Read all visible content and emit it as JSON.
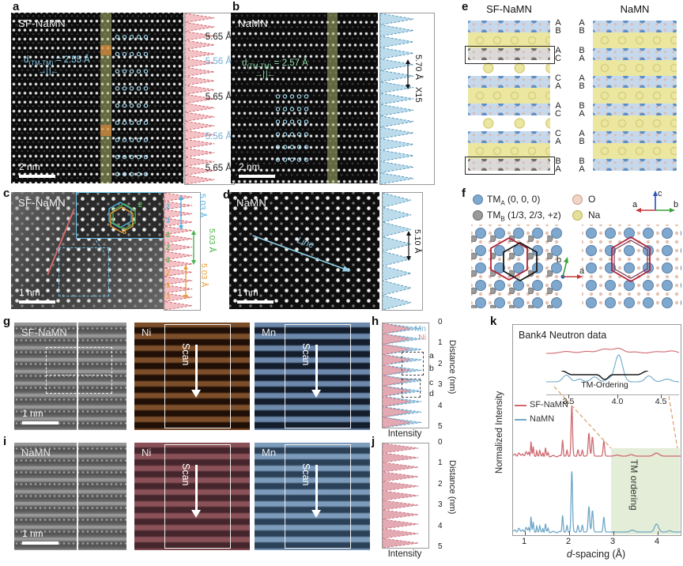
{
  "panels": {
    "a": {
      "label": "a",
      "sample": "SF-NaMN",
      "scalebar": "2 nm",
      "d_main": "d",
      "d_sub": "(TM-TM)",
      "d_rest": " = 2.55 Å",
      "arrows": "→| |←",
      "profile_labels": [
        {
          "t": "5.65 Å",
          "c": "#1a1a1a"
        },
        {
          "t": "5.56 Å",
          "c": "#74aed4"
        },
        {
          "t": "5.65 Å",
          "c": "#1a1a1a"
        },
        {
          "t": "5.56 Å",
          "c": "#74aed4"
        },
        {
          "t": "5.65 Å",
          "c": "#1a1a1a"
        }
      ]
    },
    "b": {
      "label": "b",
      "sample": "NaMN",
      "scalebar": "2 nm",
      "d_main": "d",
      "d_sub": "(TM-TM)",
      "d_rest": " = 2.57 Å",
      "arrows": "→| |←",
      "profile_label": "5.70 Å",
      "profile_mult": "X15"
    },
    "c": {
      "label": "c",
      "sample": "SF-NaMN",
      "scalebar": "1 nm",
      "measurements": [
        {
          "t": "5.03 Å",
          "c": "#4fb0e0"
        },
        {
          "t": "5.03 Å",
          "c": "#4cb44c"
        },
        {
          "t": "5.03 Å",
          "c": "#e8a03a"
        }
      ],
      "digits": [
        {
          "t": "2",
          "c": "#4fb0e0"
        },
        {
          "t": "3",
          "c": "#4fb0e0"
        },
        {
          "t": "2",
          "c": "#4cb44c"
        },
        {
          "t": "2",
          "c": "#4cb44c"
        },
        {
          "t": "3",
          "c": "#4cb44c"
        },
        {
          "t": "2",
          "c": "#e8a03a"
        },
        {
          "t": "3",
          "c": "#e8a03a"
        },
        {
          "t": "3",
          "c": "#e8a03a"
        }
      ],
      "inset_digits": [
        {
          "t": "2",
          "c": "#4cb44c"
        },
        {
          "t": "3",
          "c": "#e8a03a"
        }
      ]
    },
    "d": {
      "label": "d",
      "sample": "NaMN",
      "scalebar": "1 nm",
      "line_label": "Line",
      "measurement": "5.10 Å"
    },
    "e": {
      "label": "e",
      "left_title": "SF-NaMN",
      "right_title": "NaMN",
      "left_stacking": [
        "A",
        "B",
        "A",
        "C",
        "C",
        "A",
        "A",
        "C",
        "C",
        "A",
        "B",
        "A"
      ],
      "right_stacking": [
        "A",
        "B",
        "B",
        "A",
        "A",
        "B",
        "B",
        "A",
        "A",
        "B",
        "B",
        "A"
      ],
      "sf_layers": [
        "tm",
        "na",
        "tmg",
        "nav",
        "tm",
        "na",
        "tm",
        "nav",
        "tm",
        "na",
        "tmg"
      ],
      "nm_layers": [
        "tm",
        "na",
        "tm",
        "na",
        "tm",
        "na",
        "tm",
        "na",
        "tm",
        "na",
        "tm"
      ]
    },
    "f": {
      "label": "f",
      "legend": [
        {
          "main": "TM",
          "sub": "A",
          "rest": " (0, 0, 0)"
        },
        {
          "main": "TM",
          "sub": "B",
          "rest": " (1/3, 2/3, +z)"
        },
        {
          "main": "O",
          "sub": "",
          "rest": ""
        },
        {
          "main": "Na",
          "sub": "",
          "rest": ""
        }
      ],
      "axes1": {
        "a": "a",
        "b": "b",
        "c": "c"
      },
      "axes2": {
        "a": "a",
        "b": "b"
      }
    },
    "g": {
      "label": "g",
      "sample": "SF-NaMN",
      "scalebar": "1 nm",
      "ni": "Ni",
      "mn": "Mn",
      "scan": "Scan"
    },
    "h": {
      "label": "h",
      "mn": "Mn",
      "ni": "Ni",
      "boxes": [
        "a",
        "b",
        "c",
        "d"
      ],
      "ticks": [
        "0",
        "1",
        "2",
        "3",
        "4",
        "5"
      ],
      "axis": "Distance (nm)",
      "xlabel": "Intensity"
    },
    "i": {
      "label": "i",
      "sample": "NaMN",
      "scalebar": "1 nm",
      "ni": "Ni",
      "mn": "Mn",
      "scan": "Scan"
    },
    "j": {
      "label": "j",
      "ticks": [
        "0",
        "1",
        "2",
        "3",
        "4",
        "5"
      ],
      "axis": "Distance (nm)",
      "xlabel": "Intensity"
    },
    "k": {
      "label": "k",
      "title": "Bank4 Neutron data",
      "legend": [
        {
          "name": "SF-NaMN"
        },
        {
          "name": "NaMN"
        }
      ],
      "inset_ticks": [
        "3.5",
        "4.0",
        "4.5"
      ],
      "brace_label": "TM-Ordering",
      "region_label": "TM ordering",
      "ylabel": "Normalized Intensity",
      "xlabel_italic": "d",
      "xlabel_rest": "-spacing (Å)",
      "xticks": [
        "1",
        "2",
        "3",
        "4"
      ]
    }
  },
  "chart_data": {
    "type": "line",
    "title": "Bank4 Neutron data",
    "xlabel": "d-spacing (Å)",
    "ylabel": "Normalized Intensity",
    "xlim": [
      0.73,
      4.55
    ],
    "legend_position": "left-middle",
    "series": [
      {
        "name": "SF-NaMN",
        "color": "#cf6a70"
      },
      {
        "name": "NaMN",
        "color": "#6fa8c8"
      }
    ],
    "peak_format": "[d_spacing_A, relative_intensity, width_A]",
    "main_red": {
      "xrange": [
        0.73,
        4.55
      ],
      "baseline": 166,
      "amp": 64,
      "peaks": [
        [
          0.78,
          0.05,
          0.02
        ],
        [
          0.86,
          0.05,
          0.02
        ],
        [
          0.95,
          0.06,
          0.02
        ],
        [
          1.03,
          0.07,
          0.018
        ],
        [
          1.09,
          0.09,
          0.014
        ],
        [
          1.14,
          0.3,
          0.011
        ],
        [
          1.19,
          0.17,
          0.011
        ],
        [
          1.27,
          0.12,
          0.011
        ],
        [
          1.34,
          0.1,
          0.011
        ],
        [
          1.41,
          0.08,
          0.011
        ],
        [
          1.47,
          0.16,
          0.011
        ],
        [
          1.53,
          0.07,
          0.011
        ],
        [
          1.86,
          0.33,
          0.013
        ],
        [
          1.96,
          0.11,
          0.012
        ],
        [
          2.07,
          1.0,
          0.016
        ],
        [
          2.21,
          0.13,
          0.014
        ],
        [
          2.31,
          0.12,
          0.014
        ],
        [
          2.46,
          0.46,
          0.017
        ],
        [
          2.54,
          0.38,
          0.017
        ],
        [
          2.8,
          0.3,
          0.016
        ],
        [
          3.1,
          0.02,
          0.05
        ],
        [
          3.42,
          0.03,
          0.05
        ],
        [
          4.0,
          0.06,
          0.06
        ]
      ]
    },
    "main_blue": {
      "xrange": [
        0.73,
        4.55
      ],
      "baseline": 262,
      "amp": 78,
      "peaks": [
        [
          0.78,
          0.04,
          0.02
        ],
        [
          0.86,
          0.05,
          0.02
        ],
        [
          0.95,
          0.05,
          0.02
        ],
        [
          1.03,
          0.06,
          0.018
        ],
        [
          1.09,
          0.08,
          0.014
        ],
        [
          1.14,
          0.26,
          0.011
        ],
        [
          1.19,
          0.15,
          0.011
        ],
        [
          1.27,
          0.11,
          0.011
        ],
        [
          1.34,
          0.09,
          0.011
        ],
        [
          1.41,
          0.07,
          0.011
        ],
        [
          1.47,
          0.13,
          0.011
        ],
        [
          1.53,
          0.06,
          0.011
        ],
        [
          1.86,
          0.28,
          0.013
        ],
        [
          1.96,
          0.1,
          0.012
        ],
        [
          2.07,
          1.0,
          0.016
        ],
        [
          2.21,
          0.11,
          0.014
        ],
        [
          2.31,
          0.11,
          0.014
        ],
        [
          2.46,
          0.42,
          0.017
        ],
        [
          2.54,
          0.35,
          0.017
        ],
        [
          2.8,
          0.24,
          0.016
        ],
        [
          3.45,
          0.03,
          0.05
        ],
        [
          4.0,
          0.13,
          0.045
        ],
        [
          4.3,
          0.02,
          0.04
        ]
      ]
    },
    "inset_red": {
      "xrange": [
        3.3,
        4.62
      ],
      "baseline": 20,
      "amp": 12,
      "peaks": [
        [
          3.5,
          0.2,
          0.06
        ],
        [
          3.7,
          0.2,
          0.06
        ],
        [
          3.88,
          0.45,
          0.06
        ],
        [
          4.02,
          0.5,
          0.05
        ],
        [
          4.18,
          0.15,
          0.05
        ],
        [
          4.4,
          0.18,
          0.06
        ],
        [
          4.55,
          0.25,
          0.05
        ]
      ]
    },
    "inset_blue": {
      "xrange": [
        3.3,
        4.62
      ],
      "baseline": 56,
      "amp": 34,
      "peaks": [
        [
          3.5,
          0.25,
          0.035
        ],
        [
          3.63,
          0.1,
          0.03
        ],
        [
          3.78,
          0.18,
          0.035
        ],
        [
          3.92,
          0.1,
          0.03
        ],
        [
          4.02,
          1.0,
          0.038
        ],
        [
          4.32,
          0.22,
          0.035
        ],
        [
          4.5,
          0.1,
          0.04
        ]
      ]
    }
  }
}
